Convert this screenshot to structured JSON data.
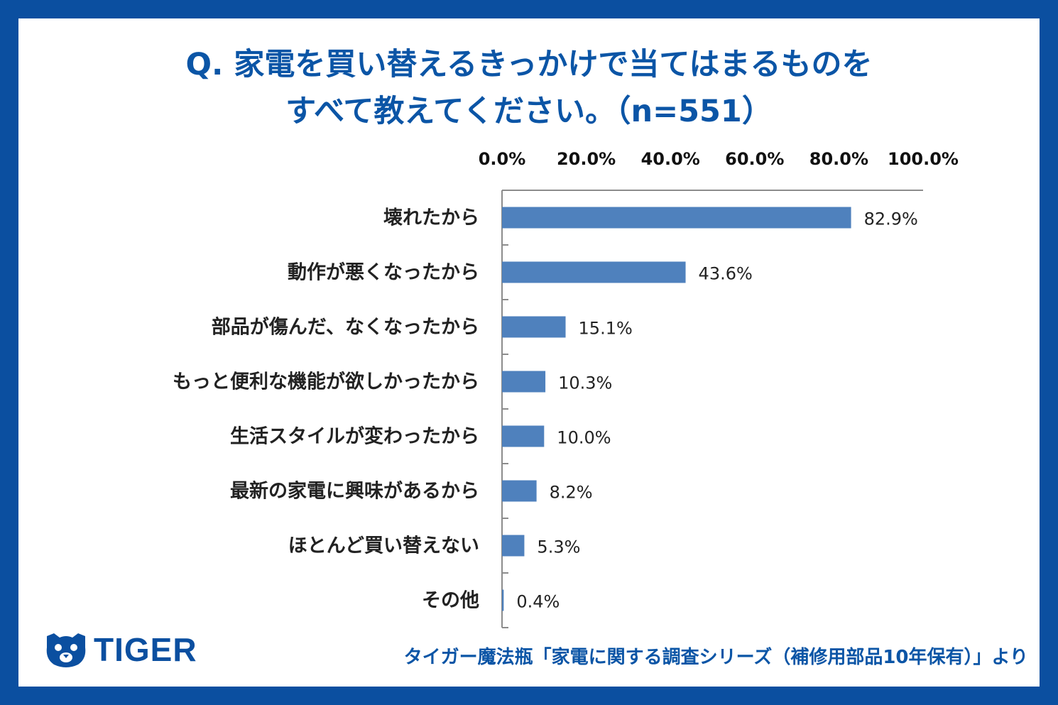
{
  "title_lines": [
    "Q. 家電を買い替えるきっかけで当てはまるものを",
    "すべて教えてください。（n=551）"
  ],
  "chart_data": {
    "type": "bar",
    "orientation": "horizontal",
    "categories": [
      "壊れたから",
      "動作が悪くなったから",
      "部品が傷んだ、なくなったから",
      "もっと便利な機能が欲しかったから",
      "生活スタイルが変わったから",
      "最新の家電に興味があるから",
      "ほとんど買い替えない",
      "その他"
    ],
    "values": [
      82.9,
      43.6,
      15.1,
      10.3,
      10.0,
      8.2,
      5.3,
      0.4
    ],
    "value_labels": [
      "82.9%",
      "43.6%",
      "15.1%",
      "10.3%",
      "10.0%",
      "8.2%",
      "5.3%",
      "0.4%"
    ],
    "xlim": [
      0,
      100
    ],
    "ticks": [
      0,
      20,
      40,
      60,
      80,
      100
    ],
    "tick_labels": [
      "0.0%",
      "20.0%",
      "40.0%",
      "60.0%",
      "80.0%",
      "100.0%"
    ],
    "axis_position": "top",
    "bar_color": "#4f81bd"
  },
  "logo": {
    "text": "TIGER",
    "color": "#0b4fa0"
  },
  "source_text": "タイガー魔法瓶「家電に関する調査シリーズ（補修用部品10年保有）」より"
}
